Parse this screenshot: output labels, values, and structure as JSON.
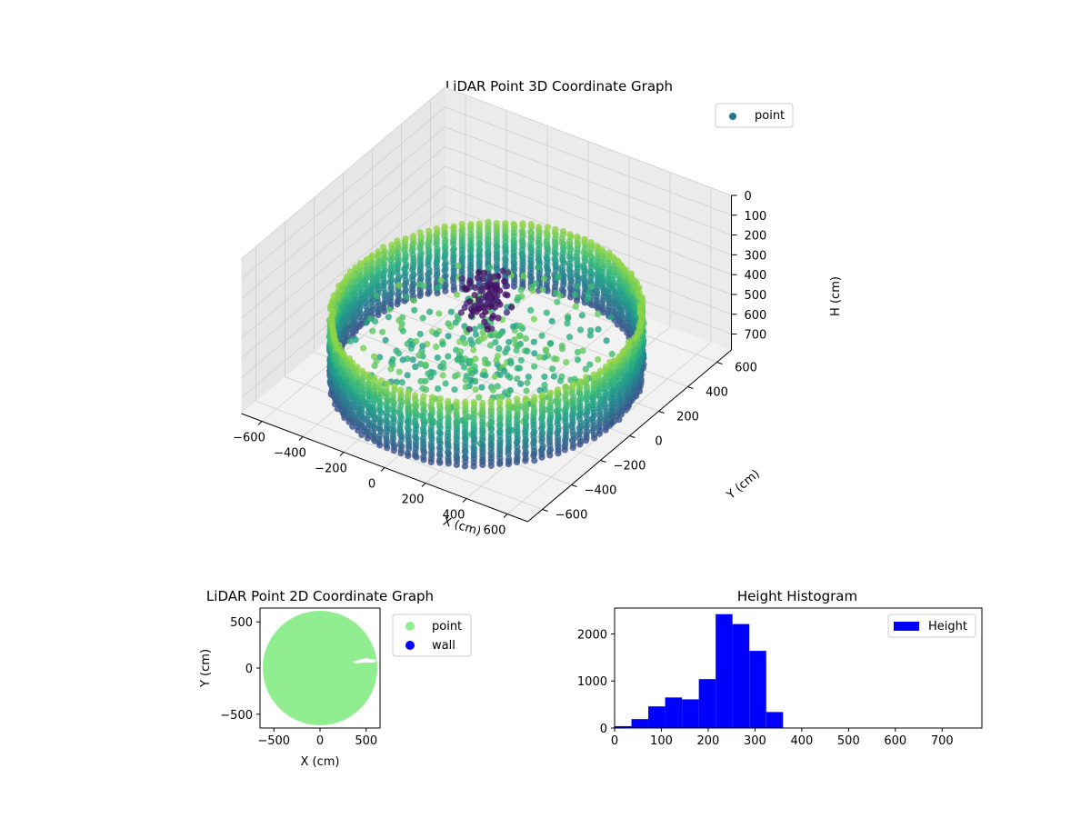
{
  "chart_data": [
    {
      "type": "scatter",
      "projection": "3d",
      "title": "LiDAR Point 3D Coordinate Graph",
      "xlabel": "X (cm)",
      "ylabel": "Y (cm)",
      "zlabel": "H (cm)",
      "xlim": [
        -700,
        700
      ],
      "ylim": [
        -700,
        700
      ],
      "zlim": [
        0,
        780
      ],
      "z_inverted": true,
      "x_ticks": [
        "−600",
        "−400",
        "−200",
        "0",
        "200",
        "400",
        "600"
      ],
      "y_ticks": [
        "−600",
        "−400",
        "−200",
        "0",
        "200",
        "400",
        "600"
      ],
      "z_ticks": [
        "0",
        "100",
        "200",
        "300",
        "400",
        "500",
        "600",
        "700"
      ],
      "colormap": "viridis",
      "grid": true,
      "legend": {
        "placement": "top-right",
        "entries": [
          {
            "label": "point",
            "color": "#21788e"
          }
        ]
      },
      "wall_radius": 620,
      "wall_height_range": [
        30,
        360
      ],
      "central_object": {
        "x": [
          -100,
          60
        ],
        "y": [
          -60,
          120
        ],
        "h": [
          120,
          220
        ]
      }
    },
    {
      "type": "scatter",
      "title": "LiDAR Point 2D Coordinate Graph",
      "xlabel": "X (cm)",
      "ylabel": "Y (cm)",
      "xlim": [
        -650,
        650
      ],
      "ylim": [
        -650,
        650
      ],
      "x_ticks": [
        "−500",
        "0",
        "500"
      ],
      "y_ticks": [
        "−500",
        "0",
        "500"
      ],
      "point_radius": 620,
      "legend": {
        "placement": "outside-right",
        "entries": [
          {
            "label": "point",
            "color": "#90ee90"
          },
          {
            "label": "wall",
            "color": "#0000ff"
          }
        ]
      }
    },
    {
      "type": "bar",
      "subtype": "histogram",
      "title": "Height Histogram",
      "series": [
        {
          "name": "Height",
          "color": "#0000ff"
        }
      ],
      "bins": [
        {
          "x0": 0,
          "x1": 36,
          "value": 40
        },
        {
          "x0": 36,
          "x1": 72,
          "value": 190
        },
        {
          "x0": 72,
          "x1": 108,
          "value": 460
        },
        {
          "x0": 108,
          "x1": 144,
          "value": 650
        },
        {
          "x0": 144,
          "x1": 180,
          "value": 610
        },
        {
          "x0": 180,
          "x1": 216,
          "value": 1040
        },
        {
          "x0": 216,
          "x1": 252,
          "value": 2420
        },
        {
          "x0": 252,
          "x1": 288,
          "value": 2210
        },
        {
          "x0": 288,
          "x1": 324,
          "value": 1640
        },
        {
          "x0": 324,
          "x1": 360,
          "value": 340
        }
      ],
      "xlim": [
        0,
        785
      ],
      "ylim": [
        0,
        2550
      ],
      "x_ticks": [
        "0",
        "100",
        "200",
        "300",
        "400",
        "500",
        "600",
        "700"
      ],
      "y_ticks": [
        "0",
        "1000",
        "2000"
      ],
      "legend": {
        "placement": "top-right",
        "entries": [
          {
            "label": "Height",
            "color": "#0000ff"
          }
        ]
      }
    }
  ]
}
